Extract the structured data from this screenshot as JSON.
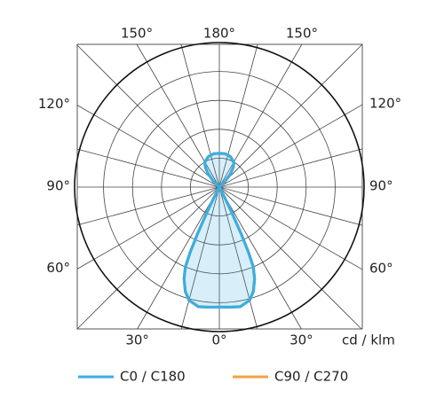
{
  "chart_data": {
    "type": "polar",
    "unit_label": "cd / klm",
    "rlim": [
      0,
      5
    ],
    "rticks": [
      1,
      2,
      3,
      4,
      5
    ],
    "theta_grid_step": 15,
    "thetaticks": [
      {
        "value": 0,
        "label": "0°"
      },
      {
        "value": 30,
        "label": "30°"
      },
      {
        "value": 60,
        "label": "60°"
      },
      {
        "value": 90,
        "label": "90°"
      },
      {
        "value": 120,
        "label": "120°"
      },
      {
        "value": 150,
        "label": "150°"
      },
      {
        "value": 180,
        "label": "180°"
      }
    ],
    "angles": [
      0,
      5,
      10,
      15,
      18,
      21,
      23,
      24,
      25,
      26,
      27,
      28,
      30,
      130,
      135,
      140,
      145,
      150,
      160,
      170,
      180
    ],
    "series": [
      {
        "name": "C90 / C270",
        "color": "#f0a341",
        "fill": false,
        "values": [
          4.15,
          4.17,
          4.2,
          4.05,
          3.8,
          3.4,
          3.0,
          2.5,
          1.8,
          1.0,
          0.4,
          0.1,
          0,
          0,
          0.3,
          0.6,
          0.85,
          1.0,
          1.12,
          1.17,
          1.17
        ]
      },
      {
        "name": "C0 / C180",
        "color": "#3aaee2",
        "fill": true,
        "values": [
          4.15,
          4.17,
          4.2,
          4.05,
          3.8,
          3.4,
          3.0,
          2.5,
          1.8,
          1.0,
          0.4,
          0.1,
          0,
          0,
          0.3,
          0.6,
          0.85,
          1.0,
          1.12,
          1.17,
          1.17
        ]
      }
    ],
    "legend_order": [
      1,
      0
    ]
  }
}
